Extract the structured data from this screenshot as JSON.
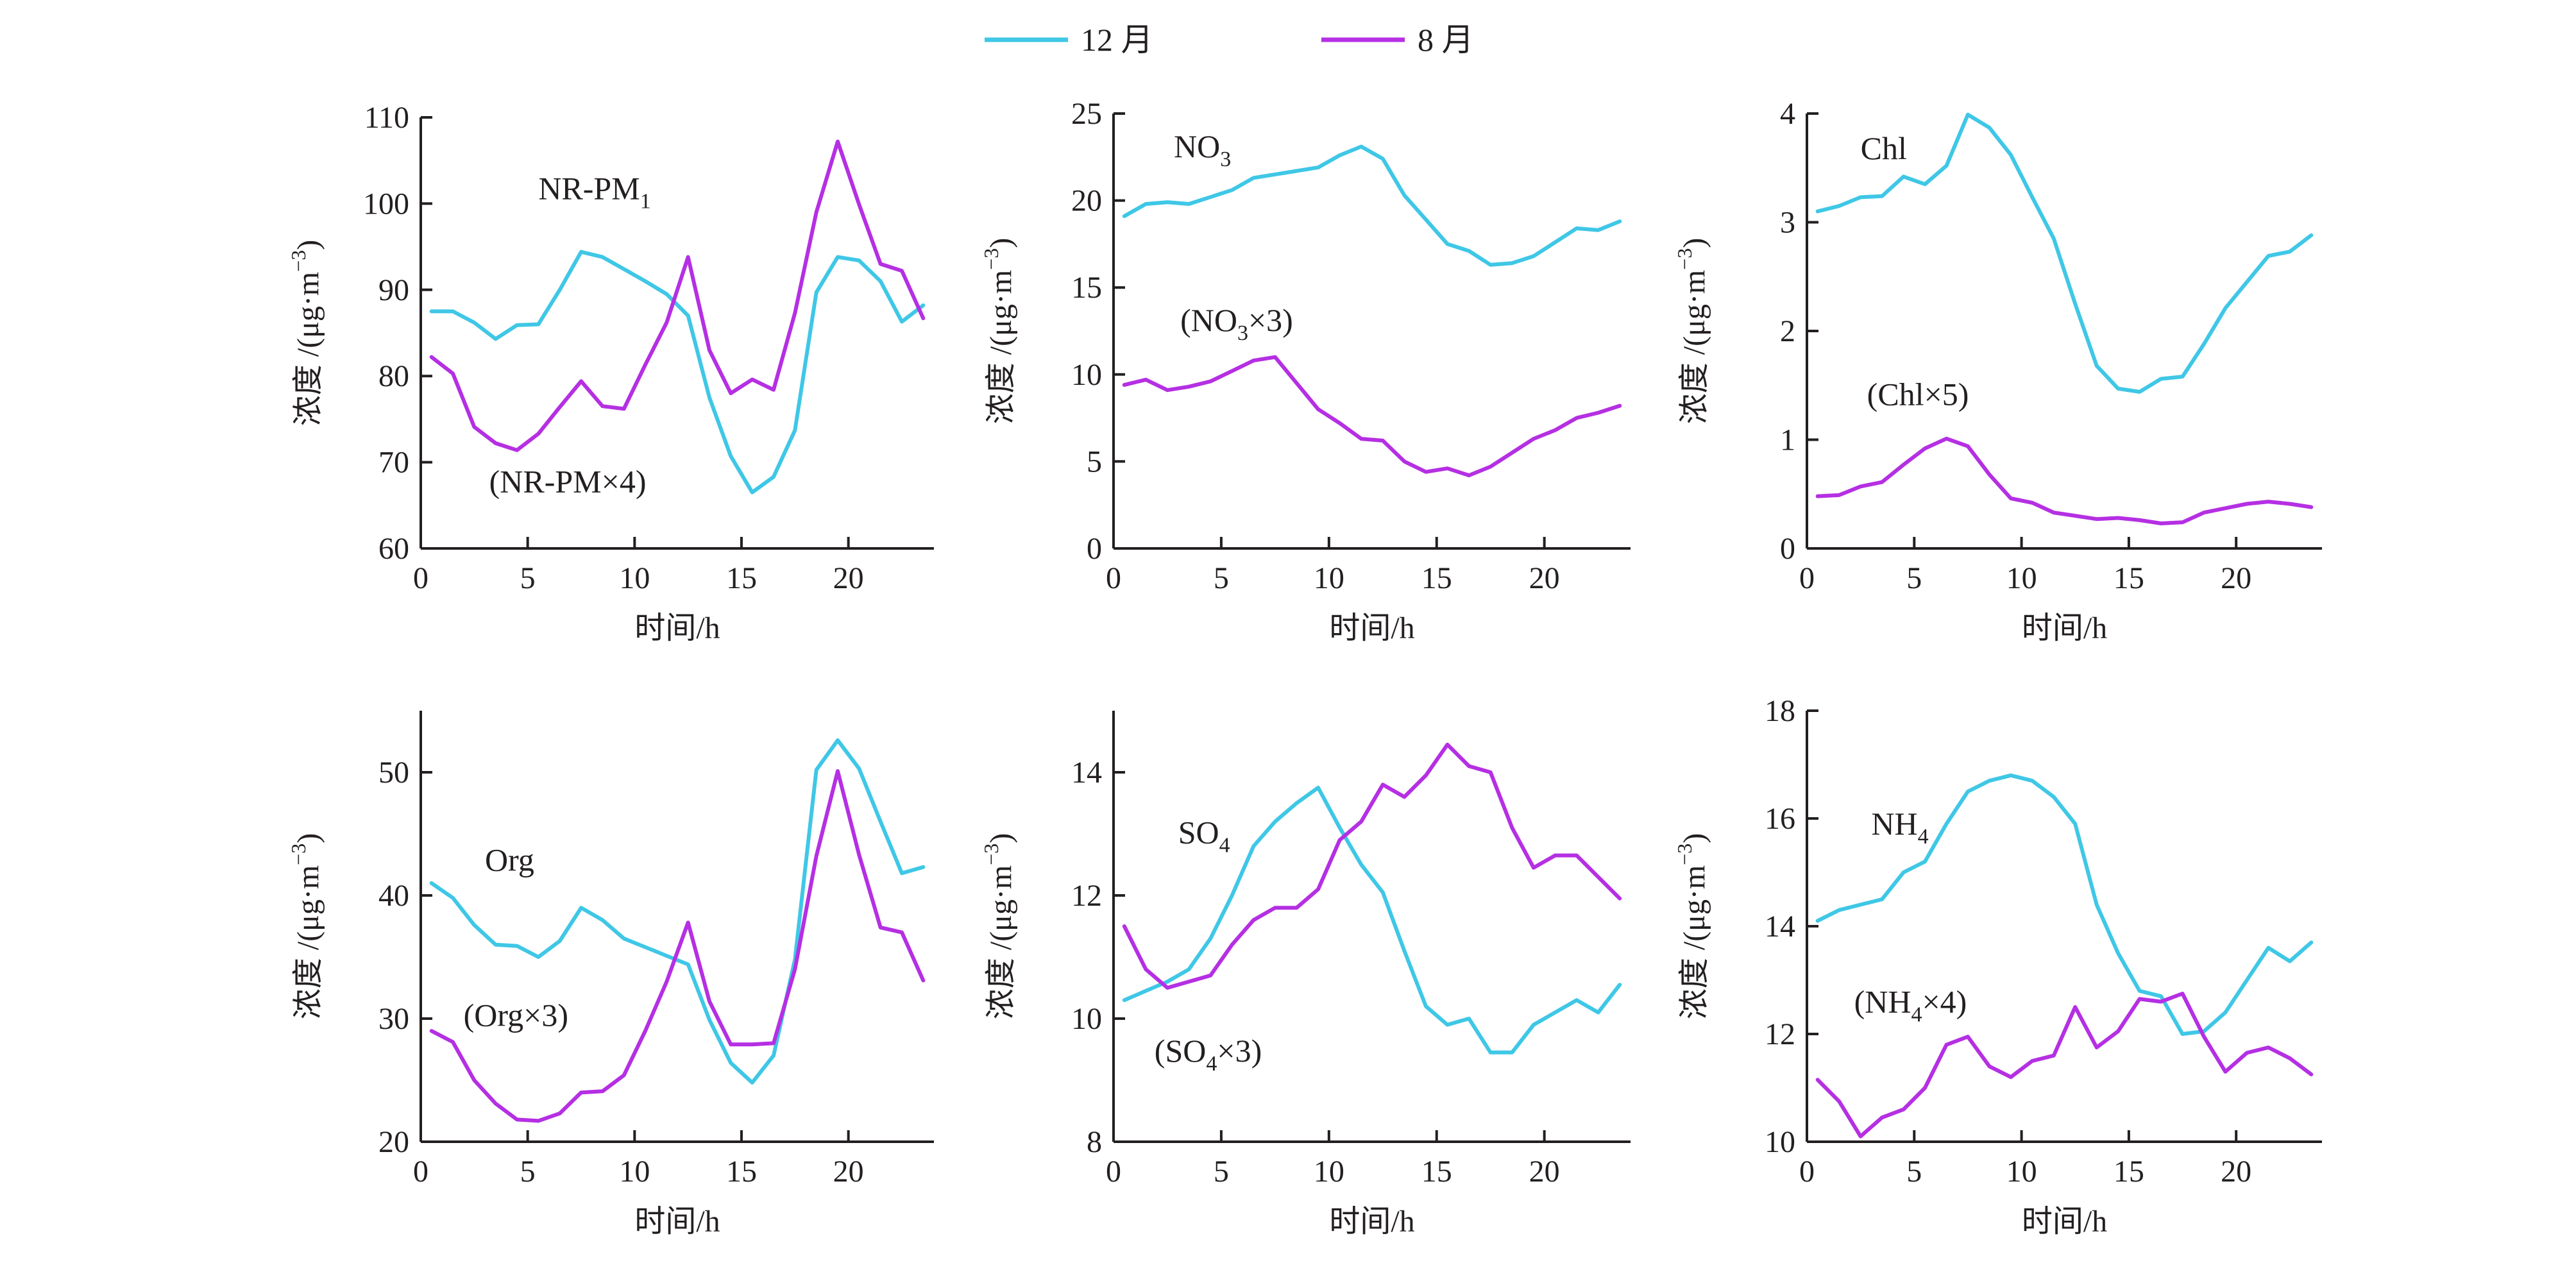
{
  "legend": {
    "items": [
      {
        "name": "12 月",
        "color": "#3fc7e6"
      },
      {
        "name": "8 月",
        "color": "#b52fe3"
      }
    ]
  },
  "chart_data": [
    {
      "type": "line",
      "xlabel": "时间/h",
      "ylabel": "浓度 /(μg·m−3)",
      "xlim": [
        0,
        24
      ],
      "ylim": [
        60,
        110
      ],
      "xticks": [
        0,
        5,
        10,
        15,
        20
      ],
      "yticks": [
        60,
        70,
        80,
        90,
        100,
        110
      ],
      "annotations": [
        {
          "text": "NR-PM",
          "sub": "1",
          "tail": "",
          "at": [
            5.5,
            100.5
          ]
        },
        {
          "text": "(NR-PM×4)",
          "sub": "",
          "tail": "",
          "at": [
            3.2,
            66.5
          ]
        }
      ],
      "series": [
        {
          "name": "12 月",
          "x": [
            0.5,
            1.5,
            2.5,
            3.5,
            4.5,
            5.5,
            6.5,
            7.5,
            8.5,
            9.5,
            10.5,
            11.5,
            12.5,
            13.5,
            14.5,
            15.5,
            16.5,
            17.5,
            18.5,
            19.5,
            20.5,
            21.5,
            22.5,
            23.5
          ],
          "values": [
            87.5,
            87.5,
            86.2,
            84.3,
            85.9,
            86.0,
            90.0,
            94.4,
            93.8,
            92.4,
            91.0,
            89.5,
            87.0,
            77.5,
            70.7,
            66.5,
            68.3,
            73.7,
            89.7,
            93.8,
            93.4,
            91.0,
            86.3,
            88.2
          ]
        },
        {
          "name": "8 月",
          "x": [
            0.5,
            1.5,
            2.5,
            3.5,
            4.5,
            5.5,
            6.5,
            7.5,
            8.5,
            9.5,
            10.5,
            11.5,
            12.5,
            13.5,
            14.5,
            15.5,
            16.5,
            17.5,
            18.5,
            19.5,
            20.5,
            21.5,
            22.5,
            23.5
          ],
          "values": [
            82.2,
            80.3,
            74.1,
            72.2,
            71.4,
            73.3,
            76.4,
            79.4,
            76.5,
            76.2,
            81.3,
            86.2,
            93.8,
            83.0,
            78.0,
            79.6,
            78.4,
            87.3,
            99.0,
            107.2,
            99.9,
            93.0,
            92.2,
            86.7
          ]
        }
      ]
    },
    {
      "type": "line",
      "xlabel": "时间/h",
      "ylabel": "浓度 /(μg·m−3)",
      "xlim": [
        0,
        24
      ],
      "ylim": [
        0,
        25
      ],
      "xticks": [
        0,
        5,
        10,
        15,
        20
      ],
      "yticks": [
        0,
        5,
        10,
        15,
        20,
        25
      ],
      "annotations": [
        {
          "text": "NO",
          "sub": "3",
          "tail": "",
          "at": [
            2.8,
            22.5
          ]
        },
        {
          "text": "(NO",
          "sub": "3",
          "tail": "×3)",
          "at": [
            3.1,
            12.5
          ]
        }
      ],
      "series": [
        {
          "name": "12 月",
          "x": [
            0.5,
            1.5,
            2.5,
            3.5,
            4.5,
            5.5,
            6.5,
            7.5,
            8.5,
            9.5,
            10.5,
            11.5,
            12.5,
            13.5,
            14.5,
            15.5,
            16.5,
            17.5,
            18.5,
            19.5,
            20.5,
            21.5,
            22.5,
            23.5
          ],
          "values": [
            19.1,
            19.8,
            19.9,
            19.8,
            20.2,
            20.6,
            21.3,
            21.5,
            21.7,
            21.9,
            22.6,
            23.1,
            22.4,
            20.3,
            18.9,
            17.5,
            17.1,
            16.3,
            16.4,
            16.8,
            17.6,
            18.4,
            18.3,
            18.8
          ]
        },
        {
          "name": "8 月",
          "x": [
            0.5,
            1.5,
            2.5,
            3.5,
            4.5,
            5.5,
            6.5,
            7.5,
            8.5,
            9.5,
            10.5,
            11.5,
            12.5,
            13.5,
            14.5,
            15.5,
            16.5,
            17.5,
            18.5,
            19.5,
            20.5,
            21.5,
            22.5,
            23.5
          ],
          "values": [
            9.4,
            9.7,
            9.1,
            9.3,
            9.6,
            10.2,
            10.8,
            11.0,
            9.5,
            8.0,
            7.2,
            6.3,
            6.2,
            5.0,
            4.4,
            4.6,
            4.2,
            4.7,
            5.5,
            6.3,
            6.8,
            7.5,
            7.8,
            8.2
          ]
        }
      ]
    },
    {
      "type": "line",
      "xlabel": "时间/h",
      "ylabel": "浓度 /(μg·m−3)",
      "xlim": [
        0,
        24
      ],
      "ylim": [
        0,
        4
      ],
      "xticks": [
        0,
        5,
        10,
        15,
        20
      ],
      "yticks": [
        0,
        1,
        2,
        3,
        4
      ],
      "annotations": [
        {
          "text": "Chl",
          "sub": "",
          "tail": "",
          "at": [
            2.5,
            3.58
          ]
        },
        {
          "text": "(Chl×5)",
          "sub": "",
          "tail": "",
          "at": [
            2.8,
            1.32
          ]
        }
      ],
      "series": [
        {
          "name": "12 月",
          "x": [
            0.5,
            1.5,
            2.5,
            3.5,
            4.5,
            5.5,
            6.5,
            7.5,
            8.5,
            9.5,
            10.5,
            11.5,
            12.5,
            13.5,
            14.5,
            15.5,
            16.5,
            17.5,
            18.5,
            19.5,
            20.5,
            21.5,
            22.5,
            23.5
          ],
          "values": [
            3.1,
            3.15,
            3.23,
            3.24,
            3.42,
            3.35,
            3.52,
            3.99,
            3.87,
            3.62,
            3.23,
            2.85,
            2.25,
            1.68,
            1.47,
            1.44,
            1.56,
            1.58,
            1.88,
            2.21,
            2.45,
            2.69,
            2.73,
            2.88
          ]
        },
        {
          "name": "8 月",
          "x": [
            0.5,
            1.5,
            2.5,
            3.5,
            4.5,
            5.5,
            6.5,
            7.5,
            8.5,
            9.5,
            10.5,
            11.5,
            12.5,
            13.5,
            14.5,
            15.5,
            16.5,
            17.5,
            18.5,
            19.5,
            20.5,
            21.5,
            22.5,
            23.5
          ],
          "values": [
            0.48,
            0.49,
            0.57,
            0.61,
            0.77,
            0.92,
            1.01,
            0.94,
            0.68,
            0.46,
            0.42,
            0.33,
            0.3,
            0.27,
            0.28,
            0.26,
            0.23,
            0.24,
            0.33,
            0.37,
            0.41,
            0.43,
            0.41,
            0.38
          ]
        }
      ]
    },
    {
      "type": "line",
      "xlabel": "时间/h",
      "ylabel": "浓度 /(μg·m−3)",
      "xlim": [
        0,
        24
      ],
      "ylim": [
        20,
        55
      ],
      "xticks": [
        0,
        5,
        10,
        15,
        20
      ],
      "yticks": [
        20,
        30,
        40,
        50
      ],
      "annotations": [
        {
          "text": "Org",
          "sub": "",
          "tail": "",
          "at": [
            3.0,
            42.0
          ]
        },
        {
          "text": "(Org×3)",
          "sub": "",
          "tail": "",
          "at": [
            2.0,
            29.4
          ]
        }
      ],
      "series": [
        {
          "name": "12 月",
          "x": [
            0.5,
            1.5,
            2.5,
            3.5,
            4.5,
            5.5,
            6.5,
            7.5,
            8.5,
            9.5,
            10.5,
            11.5,
            12.5,
            13.5,
            14.5,
            15.5,
            16.5,
            17.5,
            18.5,
            19.5,
            20.5,
            21.5,
            22.5,
            23.5
          ],
          "values": [
            41.0,
            39.8,
            37.6,
            36.0,
            35.9,
            35.0,
            36.3,
            39.0,
            38.0,
            36.5,
            35.8,
            35.1,
            34.4,
            29.9,
            26.4,
            24.8,
            27.0,
            34.8,
            50.2,
            52.6,
            50.3,
            46.0,
            41.8,
            42.3
          ]
        },
        {
          "name": "8 月",
          "x": [
            0.5,
            1.5,
            2.5,
            3.5,
            4.5,
            5.5,
            6.5,
            7.5,
            8.5,
            9.5,
            10.5,
            11.5,
            12.5,
            13.5,
            14.5,
            15.5,
            16.5,
            17.5,
            18.5,
            19.5,
            20.5,
            21.5,
            22.5,
            23.5
          ],
          "values": [
            29.0,
            28.1,
            25.0,
            23.1,
            21.8,
            21.7,
            22.3,
            24.0,
            24.1,
            25.4,
            29.0,
            33.0,
            37.8,
            31.4,
            27.9,
            27.9,
            28.0,
            34.0,
            43.2,
            50.1,
            43.3,
            37.4,
            37.0,
            33.1
          ]
        }
      ]
    },
    {
      "type": "line",
      "xlabel": "时间/h",
      "ylabel": "浓度 /(μg·m−3)",
      "xlim": [
        0,
        24
      ],
      "ylim": [
        8,
        15
      ],
      "xticks": [
        0,
        5,
        10,
        15,
        20
      ],
      "yticks": [
        8,
        10,
        12,
        14
      ],
      "annotations": [
        {
          "text": "SO",
          "sub": "4",
          "tail": "",
          "at": [
            3.0,
            12.85
          ]
        },
        {
          "text": "(SO",
          "sub": "4",
          "tail": "×3)",
          "at": [
            1.9,
            9.3
          ]
        }
      ],
      "series": [
        {
          "name": "12 月",
          "x": [
            0.5,
            1.5,
            2.5,
            3.5,
            4.5,
            5.5,
            6.5,
            7.5,
            8.5,
            9.5,
            10.5,
            11.5,
            12.5,
            13.5,
            14.5,
            15.5,
            16.5,
            17.5,
            18.5,
            19.5,
            20.5,
            21.5,
            22.5,
            23.5
          ],
          "values": [
            10.3,
            10.45,
            10.6,
            10.8,
            11.3,
            12.0,
            12.8,
            13.2,
            13.5,
            13.75,
            13.1,
            12.5,
            12.05,
            11.1,
            10.2,
            9.9,
            10.0,
            9.45,
            9.45,
            9.9,
            10.1,
            10.3,
            10.1,
            10.55
          ]
        },
        {
          "name": "8 月",
          "x": [
            0.5,
            1.5,
            2.5,
            3.5,
            4.5,
            5.5,
            6.5,
            7.5,
            8.5,
            9.5,
            10.5,
            11.5,
            12.5,
            13.5,
            14.5,
            15.5,
            16.5,
            17.5,
            18.5,
            19.5,
            20.5,
            21.5,
            22.5,
            23.5
          ],
          "values": [
            11.5,
            10.8,
            10.5,
            10.6,
            10.7,
            11.2,
            11.6,
            11.8,
            11.8,
            12.1,
            12.9,
            13.2,
            13.8,
            13.6,
            13.95,
            14.45,
            14.1,
            14.0,
            13.1,
            12.45,
            12.65,
            12.65,
            12.3,
            11.95
          ]
        }
      ]
    },
    {
      "type": "line",
      "xlabel": "时间/h",
      "ylabel": "浓度 /(μg·m−3)",
      "xlim": [
        0,
        24
      ],
      "ylim": [
        10,
        18
      ],
      "xticks": [
        0,
        5,
        10,
        15,
        20
      ],
      "yticks": [
        10,
        12,
        14,
        16,
        18
      ],
      "annotations": [
        {
          "text": "NH",
          "sub": "4",
          "tail": "",
          "at": [
            3.0,
            15.7
          ]
        },
        {
          "text": "(NH",
          "sub": "4",
          "tail": "×4)",
          "at": [
            2.2,
            12.4
          ]
        }
      ],
      "series": [
        {
          "name": "12 月",
          "x": [
            0.5,
            1.5,
            2.5,
            3.5,
            4.5,
            5.5,
            6.5,
            7.5,
            8.5,
            9.5,
            10.5,
            11.5,
            12.5,
            13.5,
            14.5,
            15.5,
            16.5,
            17.5,
            18.5,
            19.5,
            20.5,
            21.5,
            22.5,
            23.5
          ],
          "values": [
            14.1,
            14.3,
            14.4,
            14.5,
            15.0,
            15.2,
            15.9,
            16.5,
            16.7,
            16.8,
            16.7,
            16.4,
            15.9,
            14.4,
            13.5,
            12.8,
            12.7,
            12.0,
            12.05,
            12.4,
            13.0,
            13.6,
            13.35,
            13.7
          ]
        },
        {
          "name": "8 月",
          "x": [
            0.5,
            1.5,
            2.5,
            3.5,
            4.5,
            5.5,
            6.5,
            7.5,
            8.5,
            9.5,
            10.5,
            11.5,
            12.5,
            13.5,
            14.5,
            15.5,
            16.5,
            17.5,
            18.5,
            19.5,
            20.5,
            21.5,
            22.5,
            23.5
          ],
          "values": [
            11.15,
            10.75,
            10.1,
            10.45,
            10.6,
            11.0,
            11.8,
            11.95,
            11.4,
            11.2,
            11.5,
            11.6,
            12.5,
            11.75,
            12.05,
            12.65,
            12.6,
            12.75,
            11.95,
            11.3,
            11.65,
            11.75,
            11.55,
            11.25
          ]
        }
      ]
    }
  ]
}
